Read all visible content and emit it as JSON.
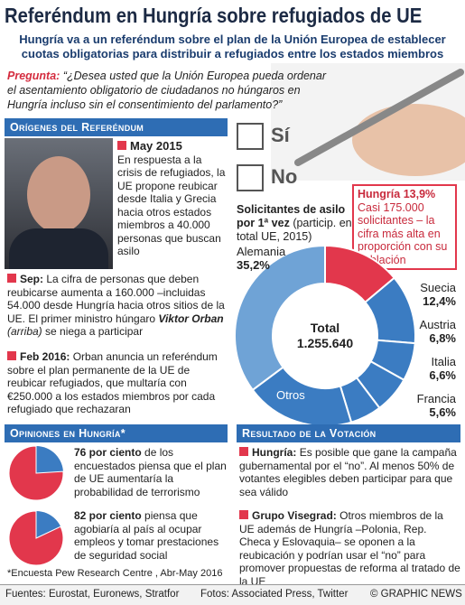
{
  "header": {
    "title": "Referéndum en Hungría sobre refugiados de UE",
    "subtitle": [
      "Hungría va a un referéndum sobre el plan de la Unión Europea de establecer",
      "cuotas obligatorias para distribuir a refugiados entre los estados miembros"
    ]
  },
  "question": {
    "label": "Pregunta:",
    "text": "“¿Desea usted que la Unión Europea pueda ordenar el asentamiento obligatorio de ciudadanos no húngaros en Hungría incluso sin el consentimiento del parlamento?”"
  },
  "ballot": {
    "options": [
      "Sí",
      "No"
    ]
  },
  "origins": {
    "heading": "Orígenes del Referéndum",
    "events": [
      {
        "date": "May 2015",
        "text": [
          "En respuesta a la crisis de refugiados, la UE propone reubicar desde Italia y Grecia hacia otros estados miembros a 40.000 personas que buscan asilo"
        ]
      },
      {
        "date": "Sep:",
        "text": [
          "La cifra de personas que deben reubicarse aumenta a 160.000 –incluidas 54.000 desde Hungría hacia otros sitios de la UE. El primer ministro húngaro",
          "Viktor Orban",
          "(arriba)",
          "se niega a participar"
        ]
      },
      {
        "date": "Feb 2016:",
        "text": [
          "Orban anuncia un referéndum sobre el plan permanente de la UE de reubicar refugiados, que multaría con €250.000 a los estados miembros por cada refugiado que rechazaran"
        ]
      }
    ]
  },
  "chart_data": {
    "type": "donut",
    "title": "Solicitantes de asilo por 1ª vez",
    "subtitle": "(particip. en total UE, 2015)",
    "categories": [
      "Hungría",
      "Suecia",
      "Austria",
      "Italia",
      "Francia",
      "Otros",
      "Alemania"
    ],
    "values": [
      13.9,
      12.4,
      6.8,
      6.6,
      5.6,
      19.5,
      35.2
    ],
    "value_labels": [
      "13,9%",
      "12,4%",
      "6,8%",
      "6,6%",
      "5,6%",
      null,
      "35,2%"
    ],
    "colors": [
      "#e2374c",
      "#3b7cc2",
      "#3b7cc2",
      "#3b7cc2",
      "#3b7cc2",
      "#3b7cc2",
      "#6fa3d6"
    ],
    "center_label": "Total",
    "total": "1.255.640",
    "annotation": "Casi 175.000 solicitantes – la cifra más alta en proporción con su población"
  },
  "opinions": {
    "heading": "Opiniones en Hungría*",
    "items": [
      {
        "value": 76,
        "value_label": "76 por ciento",
        "text": "de los encuestados piensa que el plan de UE aumentaría la probabilidad de terrorismo"
      },
      {
        "value": 82,
        "value_label": "82 por ciento",
        "text": "piensa que agobiaría al país al ocupar empleos y tomar prestaciones de seguridad social"
      }
    ],
    "footnote": "*Encuesta Pew Research Centre , Abr-May 2016"
  },
  "results": {
    "heading": "Resultado de la Votación",
    "items": [
      {
        "title": "Hungría:",
        "text": "Es posible que gane la campaña gubernamental por el “no”. Al menos 50% de votantes elegibles deben participar para que sea válido"
      },
      {
        "title": "Grupo Visegrad:",
        "text": "Otros miembros de la UE además de Hungría –Polonia, Rep. Checa y Eslovaquia– se oponen a la reubicación y podrían usar el “no” para promover propuestas de reforma al tratado de la UE"
      }
    ]
  },
  "footer": {
    "sources": "Fuentes: Eurostat, Euronews, Stratfor",
    "photos": "Fotos: Associated Press, Twitter",
    "credit": "© GRAPHIC NEWS"
  }
}
